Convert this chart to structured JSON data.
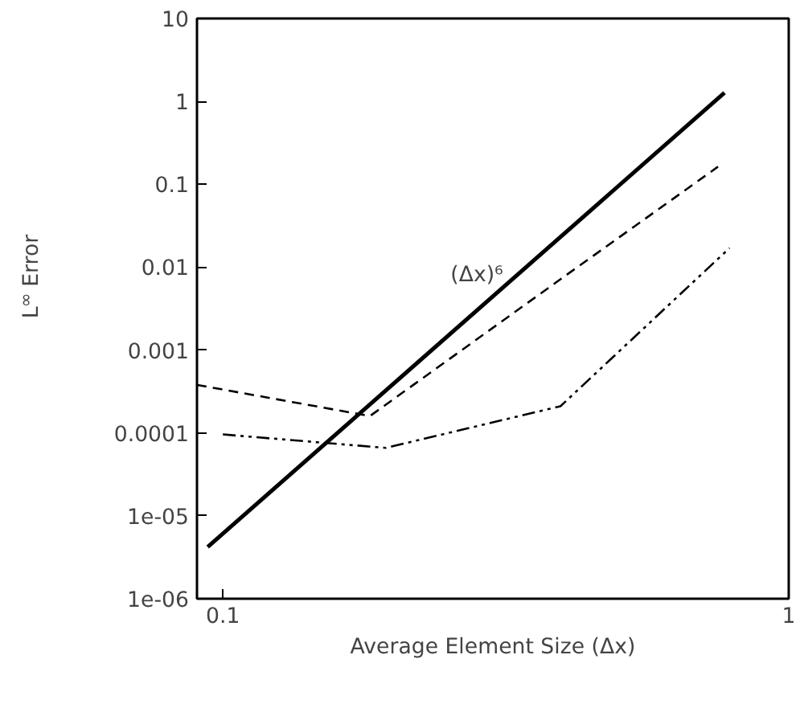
{
  "chart_data": {
    "type": "line",
    "xlabel": "Average Element Size (Δx)",
    "ylabel": "L$^{∞}$ Error",
    "log": "xy",
    "xlim": [
      0.09,
      1
    ],
    "ylim": [
      1e-06,
      10
    ],
    "xticks": [
      0.1,
      1
    ],
    "yticks": [
      {
        "value": 10,
        "label": "10"
      },
      {
        "value": 1,
        "label": "1"
      },
      {
        "value": 0.1,
        "label": "0.1"
      },
      {
        "value": 0.01,
        "label": "0.01"
      },
      {
        "value": 0.001,
        "label": "0.001"
      },
      {
        "value": 0.0001,
        "label": "0.0001"
      },
      {
        "value": 1e-05,
        "label": "1e-05"
      },
      {
        "value": 1e-06,
        "label": "1e-06"
      }
    ],
    "grid": false,
    "marker": "none",
    "series": [
      {
        "color": "#000000",
        "line_style": "solid",
        "x": [
          0.094,
          0.77
        ],
        "values": [
          4.2e-06,
          1.27
        ]
      },
      {
        "color": "#000000",
        "line_style": "dashed",
        "x": [
          0.09,
          0.182,
          0.4,
          0.75
        ],
        "values": [
          0.00038,
          0.00016,
          0.0076,
          0.163
        ]
      },
      {
        "color": "#000000",
        "line_style": "dashdot",
        "x": [
          0.1,
          0.194,
          0.395,
          0.786
        ],
        "values": [
          9.6e-05,
          6.6e-05,
          0.00021,
          0.017
        ]
      }
    ],
    "annotations": [
      "(Δx)⁶"
    ]
  }
}
